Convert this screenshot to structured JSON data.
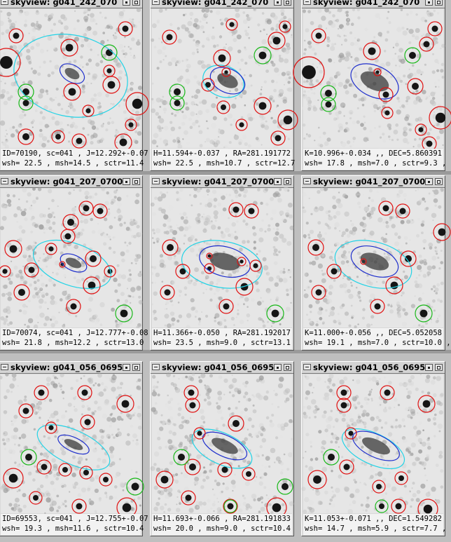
{
  "colors": {
    "ellipse_outer": "#22d3e6",
    "ellipse_inner": "#1f2fcc",
    "circle_red": "#e01010",
    "circle_green": "#18b818",
    "background": "#bfbfbf"
  },
  "panels": [
    {
      "title": "skyview: g041_242_070",
      "line1": "ID=70190, sc=041 , J=12.292+-0.07",
      "line2": "wsh= 22.5 , msh=14.5 , sctr=11.4"
    },
    {
      "title": "skyview: g041_242_070",
      "line1": "H=11.594+-0.037 , RA=281.191772",
      "line2": "wsh= 22.5 , msh=10.7 , sctr=12.7"
    },
    {
      "title": "skyview: g041_242_070",
      "line1": "K=10.996+-0.034 ,, DEC=5.860391",
      "line2": "wsh= 17.8 , msh=7.0 , sctr=9.3 ,"
    },
    {
      "title": "skyview: g041_207_0700",
      "line1": "ID=70074, sc=041 , J=12.777+-0.08",
      "line2": "wsh= 21.8 , msh=12.2 , sctr=13.0"
    },
    {
      "title": "skyview: g041_207_0700",
      "line1": "H=11.366+-0.050 , RA=281.192017",
      "line2": "wsh= 23.5 , msh=9.0 , sctr=13.1"
    },
    {
      "title": "skyview: g041_207_0700",
      "line1": "K=11.000+-0.056 ,, DEC=5.052058",
      "line2": "wsh= 19.1 , msh=7.0 , sctr=10.0 ,"
    },
    {
      "title": "skyview: g041_056_0695",
      "line1": "ID=69553, sc=041 , J=12.755+-0.07",
      "line2": "wsh= 19.3 , msh=11.6 , sctr=10.4"
    },
    {
      "title": "skyview: g041_056_0695",
      "line1": "H=11.693+-0.066 , RA=281.191833",
      "line2": "wsh= 20.0 , msh=9.0 , sctr=10.4"
    },
    {
      "title": "skyview: g041_056_0695",
      "line1": "K=11.053+-0.071 ,, DEC=1.549282",
      "line2": "wsh= 14.7 , msh=5.9 , sctr=7.7 ,"
    }
  ]
}
